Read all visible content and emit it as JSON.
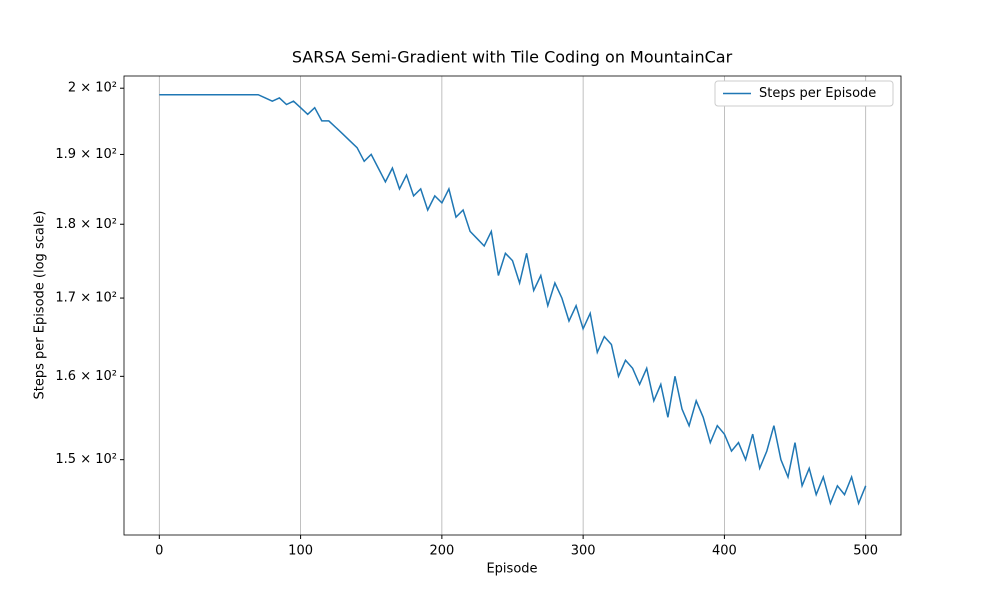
{
  "chart_data": {
    "type": "line",
    "title": "SARSA Semi-Gradient with Tile Coding on MountainCar",
    "x_label": "Episode",
    "y_label": "Steps per Episode (log scale)",
    "x": [
      0,
      5,
      10,
      15,
      20,
      25,
      30,
      35,
      40,
      45,
      50,
      55,
      60,
      65,
      70,
      75,
      80,
      85,
      90,
      95,
      100,
      105,
      110,
      115,
      120,
      125,
      130,
      135,
      140,
      145,
      150,
      155,
      160,
      165,
      170,
      175,
      180,
      185,
      190,
      195,
      200,
      205,
      210,
      215,
      220,
      225,
      230,
      235,
      240,
      245,
      250,
      255,
      260,
      265,
      270,
      275,
      280,
      285,
      290,
      295,
      300,
      305,
      310,
      315,
      320,
      325,
      330,
      335,
      340,
      345,
      350,
      355,
      360,
      365,
      370,
      375,
      380,
      385,
      390,
      395,
      400,
      405,
      410,
      415,
      420,
      425,
      430,
      435,
      440,
      445,
      450,
      455,
      460,
      465,
      470,
      475,
      480,
      485,
      490,
      495,
      500
    ],
    "series": [
      {
        "name": "Steps per Episode",
        "color": "#1f77b4",
        "values": [
          199,
          199,
          199,
          199,
          199,
          199,
          199,
          199,
          199,
          199,
          199,
          199,
          199,
          199,
          199,
          198.5,
          198,
          198.5,
          197.5,
          198,
          197,
          196,
          197,
          195,
          195,
          194,
          193,
          192,
          191,
          189,
          190,
          188,
          186,
          188,
          185,
          187,
          184,
          185,
          182,
          184,
          183,
          185,
          181,
          182,
          179,
          178,
          177,
          179,
          173,
          176,
          175,
          172,
          176,
          171,
          173,
          169,
          172,
          170,
          167,
          169,
          166,
          168,
          163,
          165,
          164,
          160,
          162,
          161,
          159,
          161,
          157,
          159,
          155,
          160,
          156,
          154,
          157,
          155,
          152,
          154,
          153,
          151,
          152,
          150,
          153,
          149,
          151,
          154,
          150,
          148,
          152,
          147,
          149,
          146,
          148,
          145,
          147,
          146,
          148,
          145,
          147
        ]
      }
    ],
    "xlim": [
      -25,
      525
    ],
    "xticks": [
      0,
      100,
      200,
      300,
      400,
      500
    ],
    "ylim": [
      141.5,
      201.9
    ],
    "log_y": true,
    "yticks": [
      {
        "value": 150,
        "label": "1.5 × 10²"
      },
      {
        "value": 160,
        "label": "1.6 × 10²"
      },
      {
        "value": 170,
        "label": "1.7 × 10²"
      },
      {
        "value": 180,
        "label": "1.8 × 10²"
      },
      {
        "value": 190,
        "label": "1.9 × 10²"
      },
      {
        "value": 200,
        "label": "2 × 10²"
      }
    ],
    "grid_x": true,
    "legend": "upper right"
  }
}
